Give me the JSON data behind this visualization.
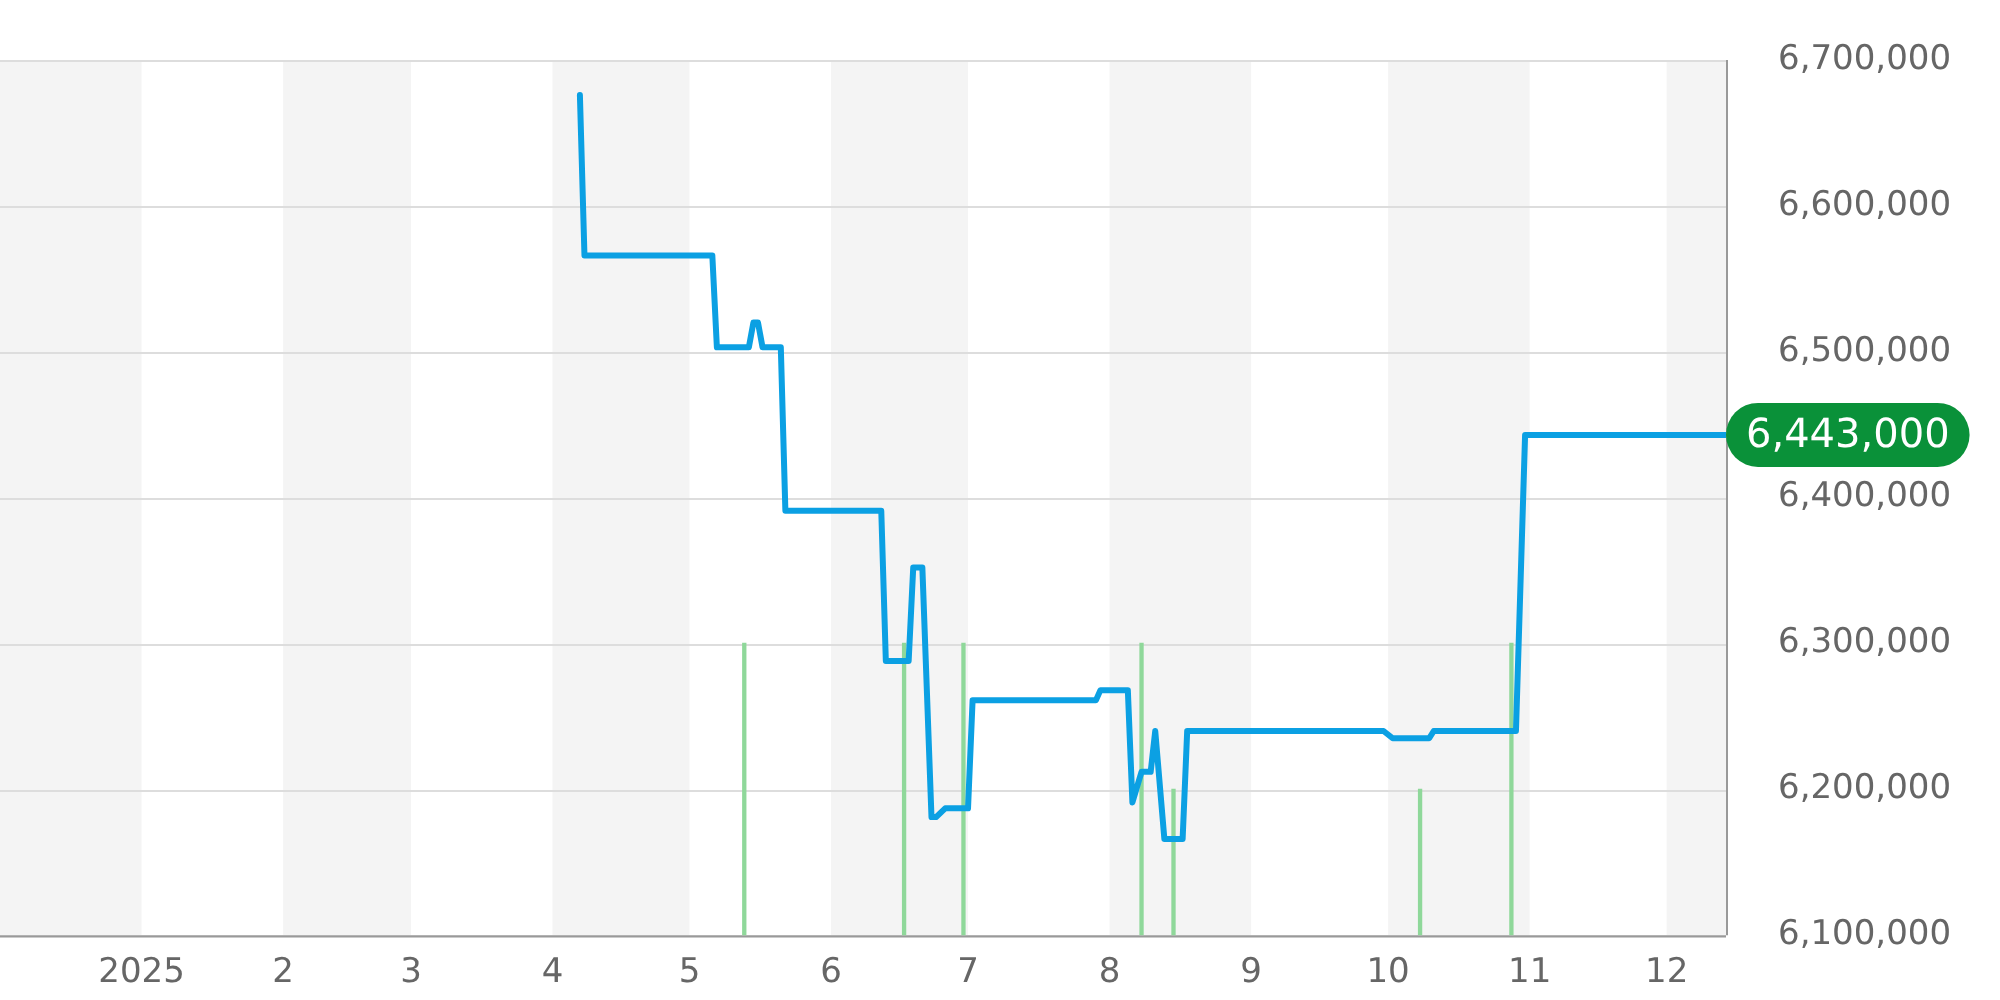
{
  "chart_data": {
    "type": "line",
    "xlim": [
      "2024-12-01",
      "2025-12-14"
    ],
    "ylim": [
      6100000,
      6700000
    ],
    "xticks": [
      {
        "value": "2025-01-01",
        "label": "2025"
      },
      {
        "value": "2025-02-01",
        "label": "2"
      },
      {
        "value": "2025-03-01",
        "label": "3"
      },
      {
        "value": "2025-04-01",
        "label": "4"
      },
      {
        "value": "2025-05-01",
        "label": "5"
      },
      {
        "value": "2025-06-01",
        "label": "6"
      },
      {
        "value": "2025-07-01",
        "label": "7"
      },
      {
        "value": "2025-08-01",
        "label": "8"
      },
      {
        "value": "2025-09-01",
        "label": "9"
      },
      {
        "value": "2025-10-01",
        "label": "10"
      },
      {
        "value": "2025-11-01",
        "label": "11"
      },
      {
        "value": "2025-12-01",
        "label": "12"
      }
    ],
    "yticks": [
      {
        "value": 6100000,
        "label": "6,100,000"
      },
      {
        "value": 6200000,
        "label": "6,200,000"
      },
      {
        "value": 6300000,
        "label": "6,300,000"
      },
      {
        "value": 6400000,
        "label": "6,400,000"
      },
      {
        "value": 6500000,
        "label": "6,500,000"
      },
      {
        "value": 6600000,
        "label": "6,600,000"
      },
      {
        "value": 6700000,
        "label": "6,700,000"
      }
    ],
    "grid": "y",
    "legend": false,
    "marker": "none",
    "line_style": "solid",
    "bands": [
      {
        "axis": "x",
        "from": "2024-12-01",
        "to": "2025-01-01",
        "color": "#f4f4f4"
      },
      {
        "axis": "x",
        "from": "2025-02-01",
        "to": "2025-03-01",
        "color": "#f4f4f4"
      },
      {
        "axis": "x",
        "from": "2025-04-01",
        "to": "2025-05-01",
        "color": "#f4f4f4"
      },
      {
        "axis": "x",
        "from": "2025-06-01",
        "to": "2025-07-01",
        "color": "#f4f4f4"
      },
      {
        "axis": "x",
        "from": "2025-08-01",
        "to": "2025-09-01",
        "color": "#f4f4f4"
      },
      {
        "axis": "x",
        "from": "2025-10-01",
        "to": "2025-11-01",
        "color": "#f4f4f4"
      },
      {
        "axis": "x",
        "from": "2025-12-01",
        "to": "2025-12-14",
        "color": "#f4f4f4"
      }
    ],
    "series": [
      {
        "type": "bar",
        "color": "#8fd89a",
        "x": [
          "2025-05-13",
          "2025-06-17",
          "2025-06-30",
          "2025-08-08",
          "2025-08-15",
          "2025-10-08",
          "2025-10-28"
        ],
        "values": [
          6300000,
          6300000,
          6300000,
          6300000,
          6200000,
          6200000,
          6300000
        ]
      },
      {
        "color": "#0ba0e3",
        "x": [
          "2025-04-07",
          "2025-04-08",
          "2025-05-06",
          "2025-05-07",
          "2025-05-14",
          "2025-05-15",
          "2025-05-16",
          "2025-05-17",
          "2025-05-21",
          "2025-05-22",
          "2025-06-12",
          "2025-06-13",
          "2025-06-18",
          "2025-06-19",
          "2025-06-21",
          "2025-06-23",
          "2025-06-24",
          "2025-06-26",
          "2025-07-01",
          "2025-07-02",
          "2025-07-29",
          "2025-07-30",
          "2025-08-05",
          "2025-08-06",
          "2025-08-08",
          "2025-08-10",
          "2025-08-11",
          "2025-08-13",
          "2025-08-17",
          "2025-08-18",
          "2025-09-30",
          "2025-10-02",
          "2025-10-10",
          "2025-10-11",
          "2025-10-29",
          "2025-10-31",
          "2025-12-14"
        ],
        "values": [
          6676000,
          6566000,
          6566000,
          6503000,
          6503000,
          6520000,
          6520000,
          6503000,
          6503000,
          6391000,
          6391000,
          6288000,
          6288000,
          6352000,
          6352000,
          6181000,
          6181000,
          6187000,
          6187000,
          6261000,
          6261000,
          6268000,
          6268000,
          6191000,
          6212000,
          6212000,
          6240000,
          6166000,
          6166000,
          6240000,
          6240000,
          6235000,
          6235000,
          6240000,
          6240000,
          6443000,
          6443000
        ],
        "value_labels": [
          null,
          null,
          null,
          null,
          null,
          null,
          null,
          null,
          null,
          null,
          null,
          null,
          null,
          null,
          null,
          null,
          null,
          null,
          null,
          null,
          null,
          null,
          null,
          null,
          null,
          null,
          null,
          null,
          null,
          null,
          null,
          null,
          null,
          null,
          null,
          null,
          "6,443,000"
        ]
      }
    ]
  }
}
